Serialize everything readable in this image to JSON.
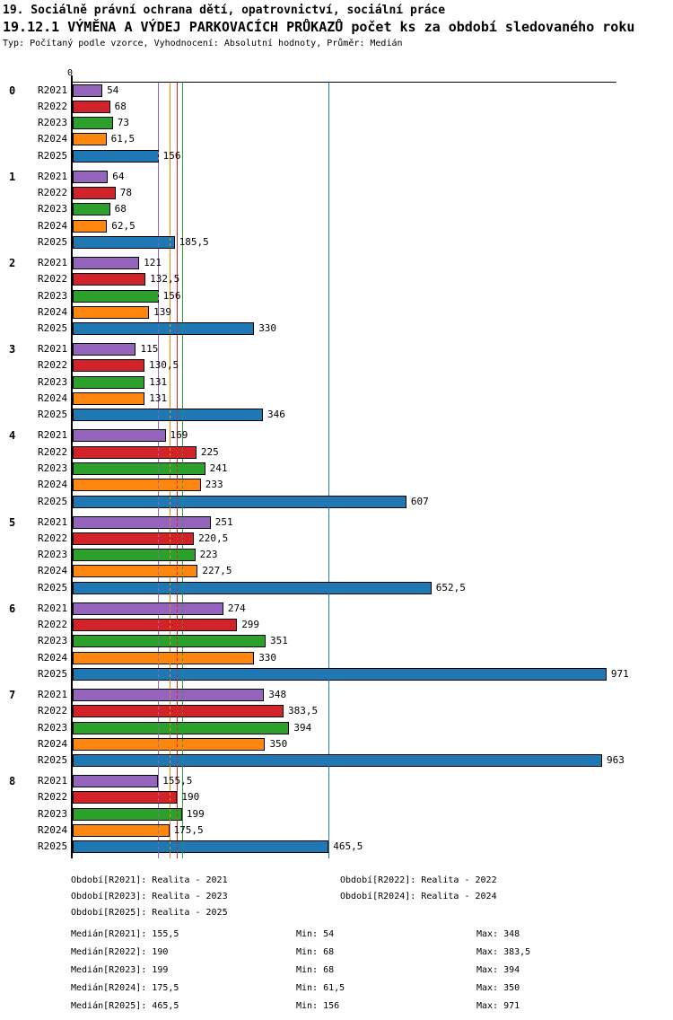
{
  "header": {
    "title": "19. Sociálně právní ochrana dětí, opatrovnictví, sociální práce",
    "subtitle": "19.12.1 VÝMĚNA A VÝDEJ PARKOVACÍCH PRŮKAZŮ počet ks za období sledovaného roku",
    "meta": "Typ: Počítaný podle vzorce, Vyhodnocení: Absolutní hodnoty, Průměr: Medián"
  },
  "chart_data": {
    "type": "bar",
    "orientation": "horizontal",
    "title": "19.12.1 VÝMĚNA A VÝDEJ PARKOVACÍCH PRŮKAZŮ počet ks za období sledovaného roku",
    "origin_label": "0",
    "xlim": [
      0,
      989
    ],
    "grid": false,
    "categories": [
      "0",
      "1",
      "2",
      "3",
      "4",
      "5",
      "6",
      "7",
      "8"
    ],
    "series": [
      {
        "name": "R2021",
        "color": "#9565BE",
        "values": [
          54,
          64,
          121,
          115,
          169,
          251,
          274,
          348,
          155.5
        ],
        "display": [
          "54",
          "64",
          "121",
          "115",
          "169",
          "251",
          "274",
          "348",
          "155,5"
        ],
        "median": 155.5,
        "median_display": "155,5"
      },
      {
        "name": "R2022",
        "color": "#D2232A",
        "values": [
          68,
          78,
          132.5,
          130.5,
          225,
          220.5,
          299,
          383.5,
          190
        ],
        "display": [
          "68",
          "78",
          "132,5",
          "130,5",
          "225",
          "220,5",
          "299",
          "383,5",
          "190"
        ],
        "median": 190,
        "median_display": "190"
      },
      {
        "name": "R2023",
        "color": "#2BA02B",
        "values": [
          73,
          68,
          156,
          131,
          241,
          223,
          351,
          394,
          199
        ],
        "display": [
          "73",
          "68",
          "156",
          "131",
          "241",
          "223",
          "351",
          "394",
          "199"
        ],
        "median": 199,
        "median_display": "199"
      },
      {
        "name": "R2024",
        "color": "#FD870E",
        "values": [
          61.5,
          62.5,
          139,
          131,
          233,
          227.5,
          330,
          350,
          175.5
        ],
        "display": [
          "61,5",
          "62,5",
          "139",
          "131",
          "233",
          "227,5",
          "330",
          "350",
          "175,5"
        ],
        "median": 175.5,
        "median_display": "175,5"
      },
      {
        "name": "R2025",
        "color": "#1F77B4",
        "values": [
          156,
          185.5,
          330,
          346,
          607,
          652.5,
          971,
          963,
          465.5
        ],
        "display": [
          "156",
          "185,5",
          "330",
          "346",
          "607",
          "652,5",
          "971",
          "963",
          "465,5"
        ],
        "median": 465.5,
        "median_display": "465,5"
      }
    ]
  },
  "legend": {
    "rows": [
      [
        "Období[R2021]: Realita - 2021",
        "Období[R2022]: Realita - 2022"
      ],
      [
        "Období[R2023]: Realita - 2023",
        "Období[R2024]: Realita - 2024"
      ],
      [
        "Období[R2025]: Realita - 2025"
      ]
    ]
  },
  "stats": {
    "rows": [
      {
        "median": "Medián[R2021]: 155,5",
        "min": "Min: 54",
        "max": "Max: 348"
      },
      {
        "median": "Medián[R2022]: 190",
        "min": "Min: 68",
        "max": "Max: 383,5"
      },
      {
        "median": "Medián[R2023]: 199",
        "min": "Min: 68",
        "max": "Max: 394"
      },
      {
        "median": "Medián[R2024]: 175,5",
        "min": "Min: 61,5",
        "max": "Max: 350"
      },
      {
        "median": "Medián[R2025]: 465,5",
        "min": "Min: 156",
        "max": "Max: 971"
      }
    ]
  }
}
